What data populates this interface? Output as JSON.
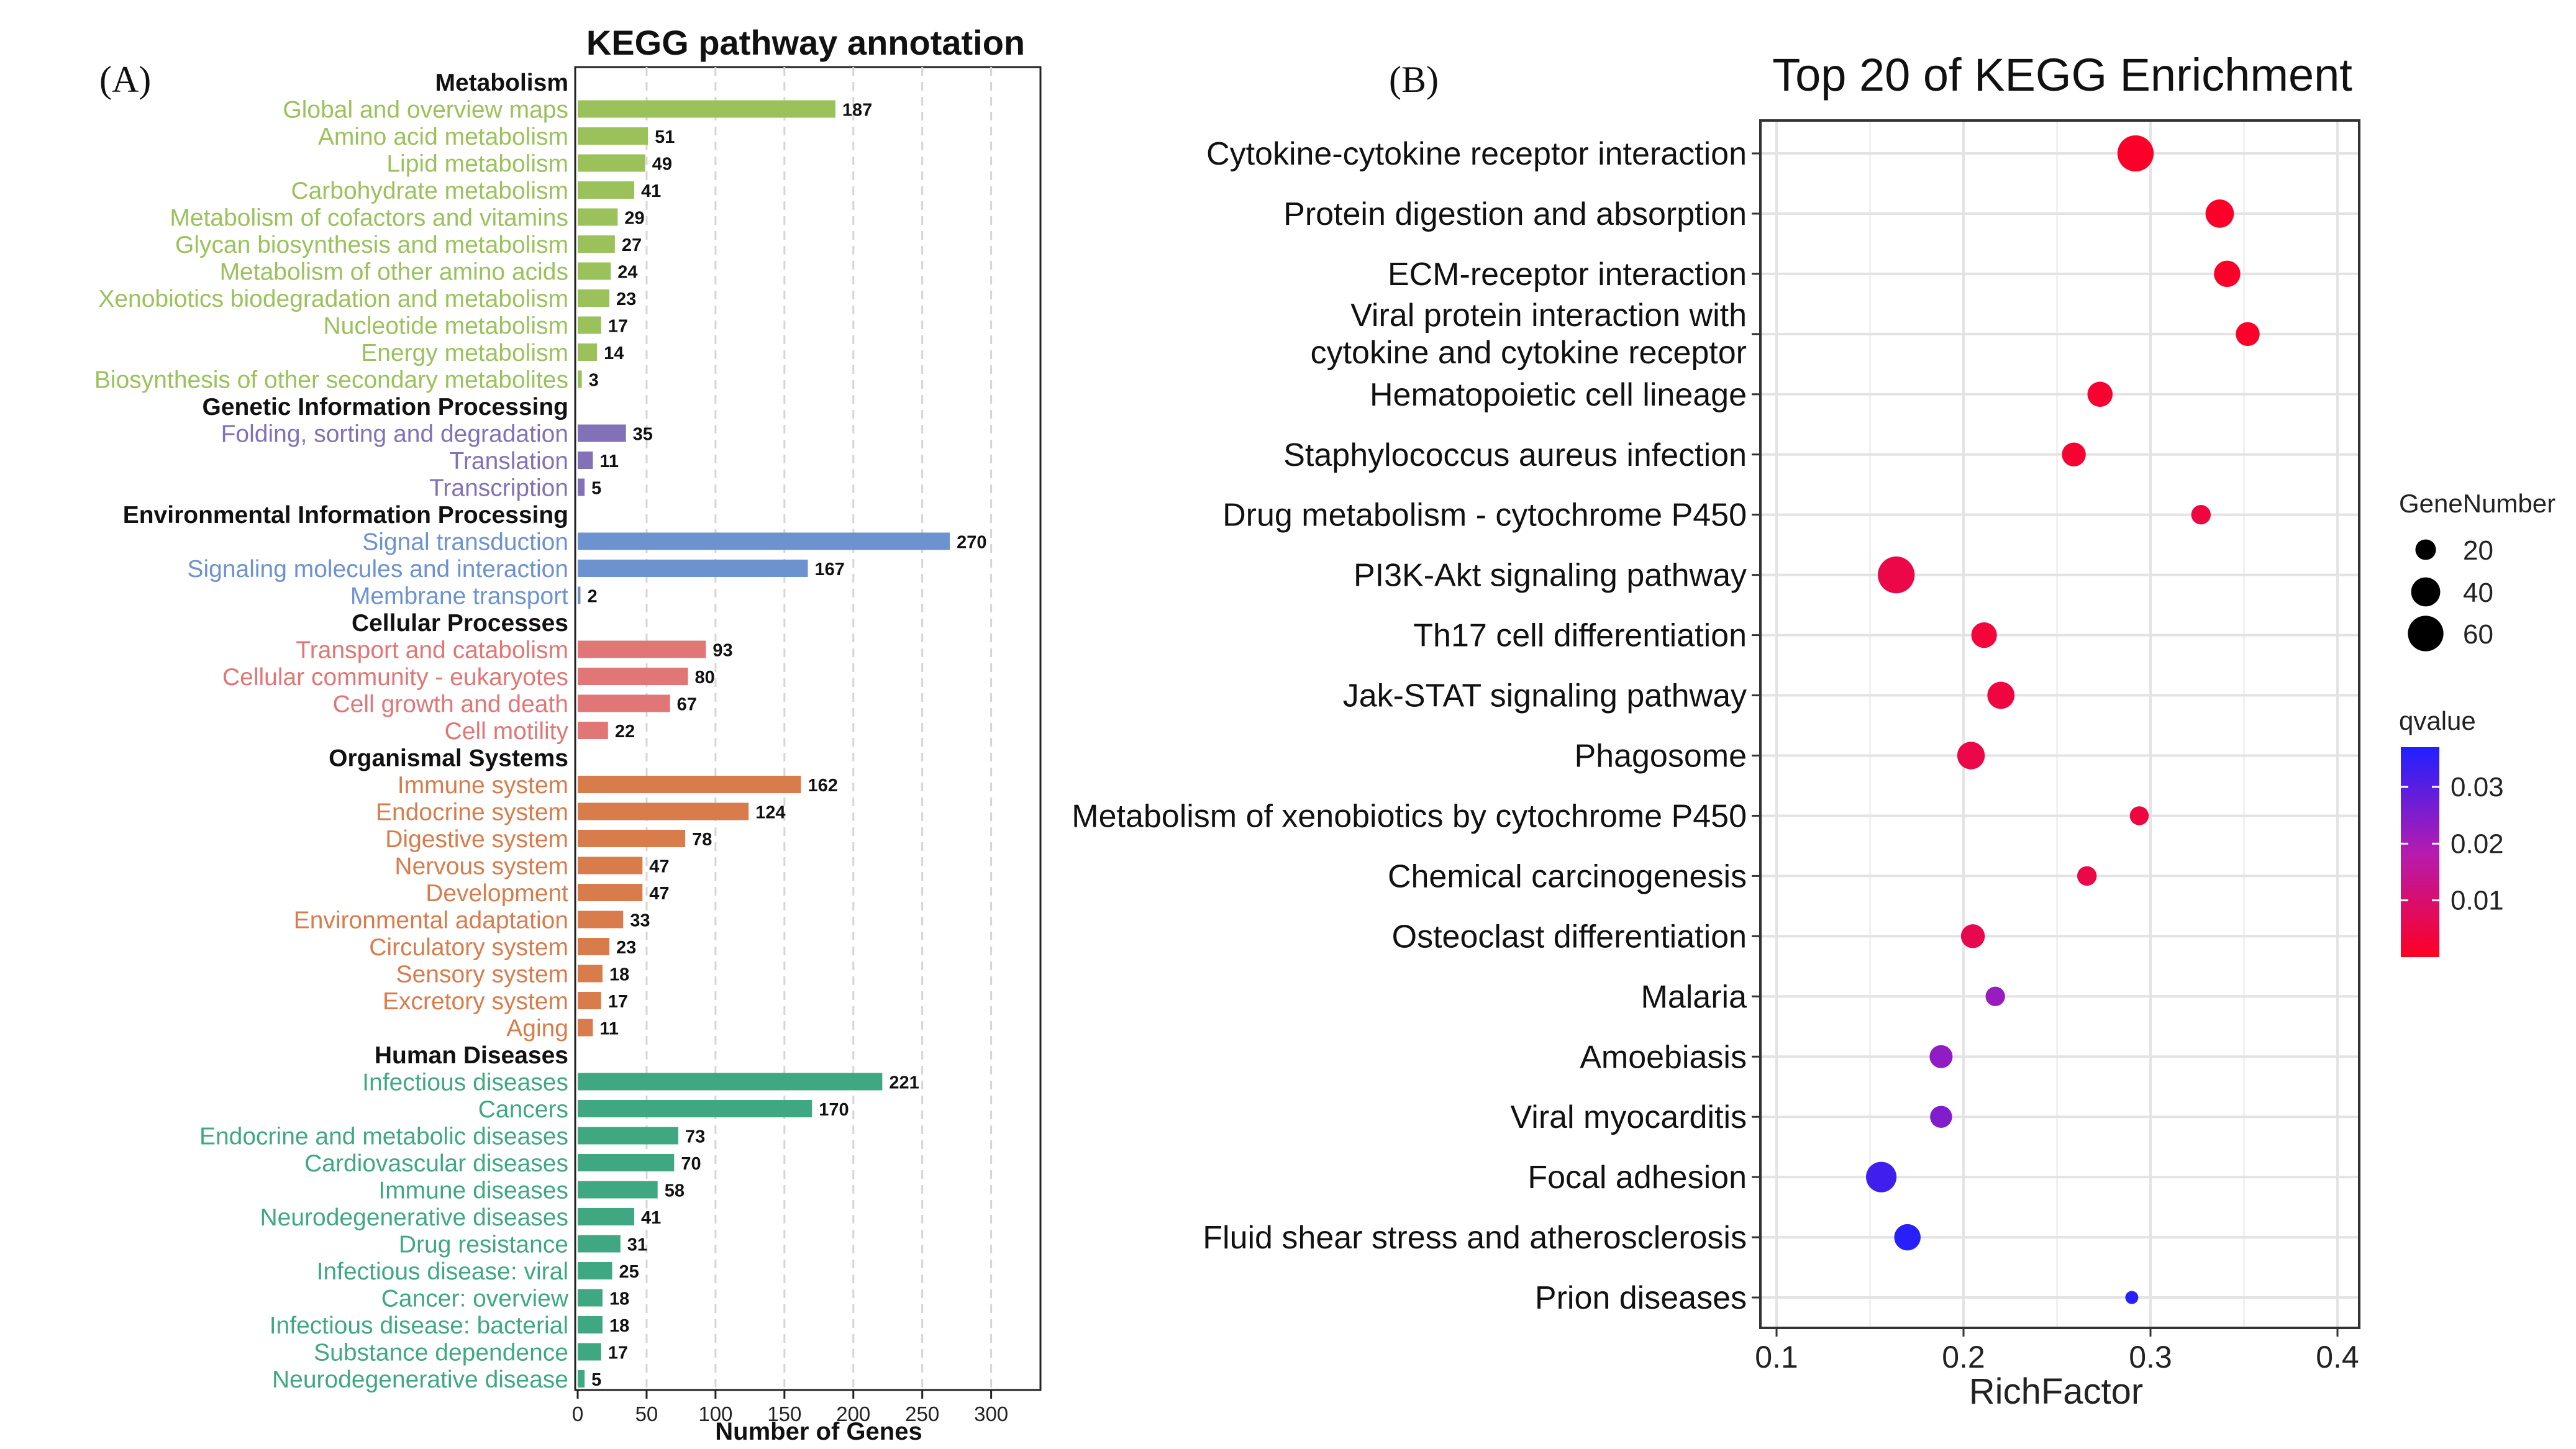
{
  "colors": {
    "Metabolism": "#9bc15b",
    "Genetic Information Processing": "#8271b6",
    "Environmental Information Processing": "#6c92d0",
    "Cellular Processes": "#e07676",
    "Organismal Systems": "#d87c4c",
    "Human Diseases": "#3fa882"
  },
  "chart_data": [
    {
      "type": "bar",
      "panel_label": "(A)",
      "title": "KEGG pathway annotation",
      "xlabel": "Number of Genes",
      "ylabel": "",
      "xlim": [
        0,
        320
      ],
      "xticks": [
        0,
        50,
        100,
        150,
        200,
        250,
        300
      ],
      "grid": "vertical dashed",
      "groups": [
        {
          "name": "Metabolism",
          "categories": [
            {
              "label": "Global and overview maps",
              "value": 187
            },
            {
              "label": "Amino acid metabolism",
              "value": 51
            },
            {
              "label": "Lipid metabolism",
              "value": 49
            },
            {
              "label": "Carbohydrate metabolism",
              "value": 41
            },
            {
              "label": "Metabolism of cofactors and vitamins",
              "value": 29
            },
            {
              "label": "Glycan biosynthesis and metabolism",
              "value": 27
            },
            {
              "label": "Metabolism of other amino acids",
              "value": 24
            },
            {
              "label": "Xenobiotics biodegradation and metabolism",
              "value": 23
            },
            {
              "label": "Nucleotide metabolism",
              "value": 17
            },
            {
              "label": "Energy metabolism",
              "value": 14
            },
            {
              "label": "Biosynthesis of other secondary metabolites",
              "value": 3
            }
          ]
        },
        {
          "name": "Genetic Information Processing",
          "categories": [
            {
              "label": "Folding, sorting and degradation",
              "value": 35
            },
            {
              "label": "Translation",
              "value": 11
            },
            {
              "label": "Transcription",
              "value": 5
            }
          ]
        },
        {
          "name": "Environmental Information Processing",
          "categories": [
            {
              "label": "Signal transduction",
              "value": 270
            },
            {
              "label": "Signaling molecules and interaction",
              "value": 167
            },
            {
              "label": "Membrane transport",
              "value": 2
            }
          ]
        },
        {
          "name": "Cellular Processes",
          "categories": [
            {
              "label": "Transport and catabolism",
              "value": 93
            },
            {
              "label": "Cellular community - eukaryotes",
              "value": 80
            },
            {
              "label": "Cell growth and death",
              "value": 67
            },
            {
              "label": "Cell motility",
              "value": 22
            }
          ]
        },
        {
          "name": "Organismal Systems",
          "categories": [
            {
              "label": "Immune system",
              "value": 162
            },
            {
              "label": "Endocrine system",
              "value": 124
            },
            {
              "label": "Digestive system",
              "value": 78
            },
            {
              "label": "Nervous system",
              "value": 47
            },
            {
              "label": "Development",
              "value": 47
            },
            {
              "label": "Environmental adaptation",
              "value": 33
            },
            {
              "label": "Circulatory system",
              "value": 23
            },
            {
              "label": "Sensory system",
              "value": 18
            },
            {
              "label": "Excretory system",
              "value": 17
            },
            {
              "label": "Aging",
              "value": 11
            }
          ]
        },
        {
          "name": "Human Diseases",
          "categories": [
            {
              "label": "Infectious diseases",
              "value": 221
            },
            {
              "label": "Cancers",
              "value": 170
            },
            {
              "label": "Endocrine and metabolic diseases",
              "value": 73
            },
            {
              "label": "Cardiovascular diseases",
              "value": 70
            },
            {
              "label": "Immune diseases",
              "value": 58
            },
            {
              "label": "Neurodegenerative diseases",
              "value": 41
            },
            {
              "label": "Drug resistance",
              "value": 31
            },
            {
              "label": "Infectious disease: viral",
              "value": 25
            },
            {
              "label": "Cancer: overview",
              "value": 18
            },
            {
              "label": "Infectious disease: bacterial",
              "value": 18
            },
            {
              "label": "Substance dependence",
              "value": 17
            },
            {
              "label": "Neurodegenerative disease",
              "value": 5
            }
          ]
        }
      ]
    },
    {
      "type": "scatter",
      "panel_label": "(B)",
      "title": "Top 20 of KEGG Enrichment",
      "xlabel": "RichFactor",
      "ylabel": "",
      "xlim": [
        0.09,
        0.42
      ],
      "xticks": [
        0.1,
        0.2,
        0.3,
        0.4
      ],
      "xtick_labels": [
        "0.1",
        "0.2",
        "0.3",
        "0.4"
      ],
      "grid": true,
      "points": [
        {
          "term": "Cytokine-cytokine receptor interaction",
          "lines": [
            "Cytokine-cytokine receptor interaction"
          ],
          "rich_factor": 0.292,
          "gene_number": 62,
          "qvalue": 0.001
        },
        {
          "term": "Protein digestion and absorption",
          "lines": [
            "Protein digestion and absorption"
          ],
          "rich_factor": 0.337,
          "gene_number": 38,
          "qvalue": 0.001
        },
        {
          "term": "ECM-receptor interaction",
          "lines": [
            "ECM-receptor interaction"
          ],
          "rich_factor": 0.341,
          "gene_number": 33,
          "qvalue": 0.001
        },
        {
          "term": "Viral protein interaction with cytokine and cytokine receptor",
          "lines": [
            "Viral protein interaction with",
            "cytokine and cytokine receptor"
          ],
          "rich_factor": 0.352,
          "gene_number": 27,
          "qvalue": 0.001
        },
        {
          "term": "Hematopoietic cell lineage",
          "lines": [
            "Hematopoietic cell lineage"
          ],
          "rich_factor": 0.273,
          "gene_number": 30,
          "qvalue": 0.002
        },
        {
          "term": "Staphylococcus aureus infection",
          "lines": [
            "Staphylococcus aureus infection"
          ],
          "rich_factor": 0.259,
          "gene_number": 27,
          "qvalue": 0.002
        },
        {
          "term": "Drug metabolism - cytochrome P450",
          "lines": [
            "Drug metabolism - cytochrome P450"
          ],
          "rich_factor": 0.327,
          "gene_number": 18,
          "qvalue": 0.004
        },
        {
          "term": "PI3K-Akt signaling pathway",
          "lines": [
            "PI3K-Akt signaling pathway"
          ],
          "rich_factor": 0.164,
          "gene_number": 64,
          "qvalue": 0.005
        },
        {
          "term": "Th17 cell differentiation",
          "lines": [
            "Th17 cell differentiation"
          ],
          "rich_factor": 0.211,
          "gene_number": 31,
          "qvalue": 0.003
        },
        {
          "term": "Jak-STAT signaling pathway",
          "lines": [
            "Jak-STAT signaling pathway"
          ],
          "rich_factor": 0.22,
          "gene_number": 35,
          "qvalue": 0.004
        },
        {
          "term": "Phagosome",
          "lines": [
            "Phagosome"
          ],
          "rich_factor": 0.204,
          "gene_number": 36,
          "qvalue": 0.005
        },
        {
          "term": "Metabolism of xenobiotics by cytochrome P450",
          "lines": [
            "Metabolism of xenobiotics by cytochrome P450"
          ],
          "rich_factor": 0.294,
          "gene_number": 17,
          "qvalue": 0.004
        },
        {
          "term": "Chemical carcinogenesis",
          "lines": [
            "Chemical carcinogenesis"
          ],
          "rich_factor": 0.266,
          "gene_number": 18,
          "qvalue": 0.005
        },
        {
          "term": "Osteoclast differentiation",
          "lines": [
            "Osteoclast differentiation"
          ],
          "rich_factor": 0.205,
          "gene_number": 27,
          "qvalue": 0.006
        },
        {
          "term": "Malaria",
          "lines": [
            "Malaria"
          ],
          "rich_factor": 0.217,
          "gene_number": 18,
          "qvalue": 0.022
        },
        {
          "term": "Amoebiasis",
          "lines": [
            "Amoebiasis"
          ],
          "rich_factor": 0.188,
          "gene_number": 25,
          "qvalue": 0.023
        },
        {
          "term": "Viral myocarditis",
          "lines": [
            "Viral myocarditis"
          ],
          "rich_factor": 0.188,
          "gene_number": 23,
          "qvalue": 0.025
        },
        {
          "term": "Focal adhesion",
          "lines": [
            "Focal adhesion"
          ],
          "rich_factor": 0.156,
          "gene_number": 44,
          "qvalue": 0.033
        },
        {
          "term": "Fluid shear stress and atherosclerosis",
          "lines": [
            "Fluid shear stress and atherosclerosis"
          ],
          "rich_factor": 0.17,
          "gene_number": 33,
          "qvalue": 0.036
        },
        {
          "term": "Prion diseases",
          "lines": [
            "Prion diseases"
          ],
          "rich_factor": 0.29,
          "gene_number": 8,
          "qvalue": 0.036
        }
      ],
      "size_legend": {
        "title": "GeneNumber",
        "values": [
          20,
          40,
          60
        ]
      },
      "color_legend": {
        "title": "qvalue",
        "range": [
          0,
          0.037
        ],
        "ticks": [
          0.01,
          0.02,
          0.03
        ],
        "tick_labels": [
          "0.01",
          "0.02",
          "0.03"
        ],
        "low_color": "#ff0022",
        "mid_color": "#b51bb0",
        "high_color": "#2020ff"
      }
    }
  ]
}
